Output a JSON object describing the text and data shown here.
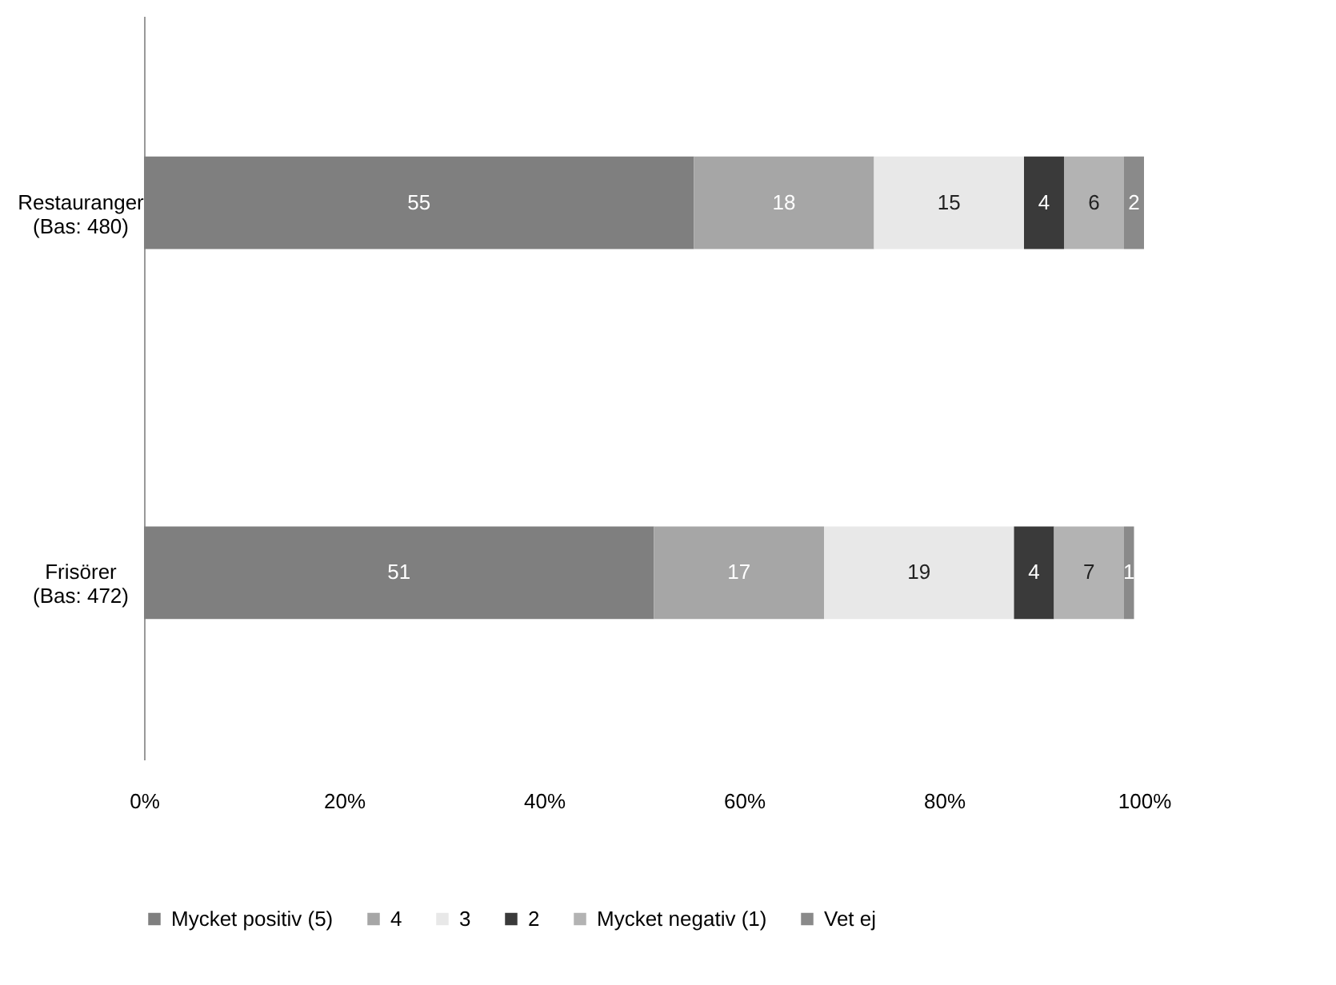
{
  "chart_data": {
    "type": "bar",
    "orientation": "horizontal",
    "stacked": true,
    "categories": [
      "Restauranger\n(Bas: 480)",
      "Frisörer\n(Bas: 472)"
    ],
    "series": [
      {
        "name": "Mycket positiv (5)",
        "color": "#7f7f7f",
        "values": [
          55,
          51
        ]
      },
      {
        "name": "4",
        "color": "#a6a6a6",
        "values": [
          18,
          17
        ]
      },
      {
        "name": "3",
        "color": "#e8e8e8",
        "values": [
          15,
          19
        ]
      },
      {
        "name": "2",
        "color": "#3a3a3a",
        "values": [
          4,
          4
        ]
      },
      {
        "name": "Mycket negativ (1)",
        "color": "#b3b3b3",
        "values": [
          6,
          7
        ]
      },
      {
        "name": "Vet ej",
        "color": "#8a8a8a",
        "values": [
          2,
          1
        ]
      }
    ],
    "xlim": [
      0,
      100
    ],
    "xticks": [
      {
        "value": 0,
        "label": "0%"
      },
      {
        "value": 20,
        "label": "20%"
      },
      {
        "value": 40,
        "label": "40%"
      },
      {
        "value": 60,
        "label": "60%"
      },
      {
        "value": 80,
        "label": "80%"
      },
      {
        "value": 100,
        "label": "100%"
      }
    ],
    "data_labels": true,
    "grid": false,
    "legend": "bottom"
  }
}
